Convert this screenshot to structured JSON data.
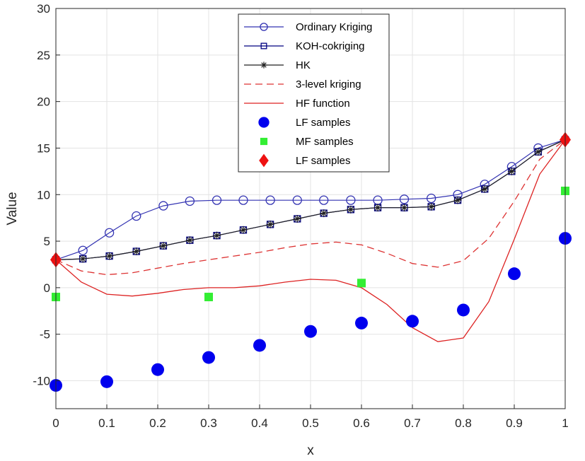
{
  "chart_data": {
    "type": "line",
    "title": "",
    "xlabel": "x",
    "ylabel": "Value",
    "xlim": [
      0,
      1
    ],
    "ylim": [
      -13,
      30
    ],
    "grid": true,
    "legend_placement": "top-center",
    "xticks": [
      0,
      0.1,
      0.2,
      0.3,
      0.4,
      0.5,
      0.6,
      0.7,
      0.8,
      0.9,
      1
    ],
    "xtick_labels": [
      "0",
      "0.1",
      "0.2",
      "0.3",
      "0.4",
      "0.5",
      "0.6",
      "0.7",
      "0.8",
      "0.9",
      "1"
    ],
    "yticks": [
      -10,
      -5,
      0,
      5,
      10,
      15,
      20,
      25,
      30
    ],
    "ytick_labels": [
      "-10",
      "-5",
      "0",
      "5",
      "10",
      "15",
      "20",
      "25",
      "30"
    ],
    "series": [
      {
        "name": "Ordinary Kriging",
        "style": "line-circle",
        "color": "#3333b2",
        "x": [
          0,
          0.053,
          0.105,
          0.158,
          0.211,
          0.263,
          0.316,
          0.368,
          0.421,
          0.474,
          0.526,
          0.579,
          0.632,
          0.684,
          0.737,
          0.789,
          0.842,
          0.895,
          0.947,
          1
        ],
        "y": [
          3.0,
          4.0,
          5.9,
          7.7,
          8.8,
          9.3,
          9.4,
          9.4,
          9.4,
          9.4,
          9.4,
          9.4,
          9.4,
          9.5,
          9.6,
          10.0,
          11.1,
          13.0,
          15.0,
          15.9
        ]
      },
      {
        "name": "KOH-cokriging",
        "style": "line-square",
        "color": "#000080",
        "x": [
          0,
          0.053,
          0.105,
          0.158,
          0.211,
          0.263,
          0.316,
          0.368,
          0.421,
          0.474,
          0.526,
          0.579,
          0.632,
          0.684,
          0.737,
          0.789,
          0.842,
          0.895,
          0.947,
          1
        ],
        "y": [
          3.0,
          3.1,
          3.4,
          3.9,
          4.5,
          5.1,
          5.6,
          6.2,
          6.8,
          7.4,
          8.0,
          8.4,
          8.6,
          8.6,
          8.7,
          9.4,
          10.6,
          12.5,
          14.6,
          15.9
        ]
      },
      {
        "name": "HK",
        "style": "line-asterisk",
        "color": "#222222",
        "x": [
          0,
          0.053,
          0.105,
          0.158,
          0.211,
          0.263,
          0.316,
          0.368,
          0.421,
          0.474,
          0.526,
          0.579,
          0.632,
          0.684,
          0.737,
          0.789,
          0.842,
          0.895,
          0.947,
          1
        ],
        "y": [
          3.0,
          3.1,
          3.4,
          3.9,
          4.5,
          5.1,
          5.6,
          6.2,
          6.8,
          7.4,
          8.0,
          8.4,
          8.6,
          8.6,
          8.7,
          9.4,
          10.6,
          12.5,
          14.6,
          15.9
        ]
      },
      {
        "name": "3-level kriging",
        "style": "dashed",
        "color": "#dd3333",
        "x": [
          0,
          0.05,
          0.1,
          0.15,
          0.2,
          0.25,
          0.3,
          0.35,
          0.4,
          0.45,
          0.5,
          0.55,
          0.6,
          0.65,
          0.7,
          0.75,
          0.8,
          0.85,
          0.9,
          0.95,
          1
        ],
        "y": [
          3.0,
          1.8,
          1.4,
          1.6,
          2.1,
          2.6,
          3.0,
          3.4,
          3.8,
          4.3,
          4.7,
          4.9,
          4.6,
          3.7,
          2.6,
          2.2,
          2.9,
          5.3,
          9.3,
          13.8,
          15.9
        ]
      },
      {
        "name": "HF function",
        "style": "solid",
        "color": "#dd2222",
        "x": [
          0,
          0.05,
          0.1,
          0.15,
          0.2,
          0.25,
          0.3,
          0.35,
          0.4,
          0.45,
          0.5,
          0.55,
          0.6,
          0.65,
          0.7,
          0.75,
          0.8,
          0.85,
          0.9,
          0.95,
          1
        ],
        "y": [
          3.0,
          0.6,
          -0.7,
          -0.9,
          -0.6,
          -0.2,
          0.0,
          0.0,
          0.2,
          0.6,
          0.9,
          0.8,
          0.0,
          -1.8,
          -4.3,
          -5.8,
          -5.4,
          -1.5,
          5.2,
          12.2,
          15.9
        ]
      },
      {
        "name": "LF samples",
        "style": "marker-circle",
        "color": "#0000ee",
        "x": [
          0,
          0.1,
          0.2,
          0.3,
          0.4,
          0.5,
          0.6,
          0.7,
          0.8,
          0.9,
          1
        ],
        "y": [
          -10.5,
          -10.1,
          -8.8,
          -7.5,
          -6.2,
          -4.7,
          -3.8,
          -3.6,
          -2.4,
          1.5,
          5.3
        ]
      },
      {
        "name": "MF samples",
        "style": "marker-square",
        "color": "#33ee33",
        "x": [
          0,
          0.3,
          0.6,
          1
        ],
        "y": [
          -1.0,
          -1.0,
          0.5,
          10.4
        ]
      },
      {
        "name": "LF samples",
        "style": "marker-diamond",
        "color": "#ee1111",
        "x": [
          0,
          1
        ],
        "y": [
          3.0,
          15.9
        ]
      }
    ]
  }
}
